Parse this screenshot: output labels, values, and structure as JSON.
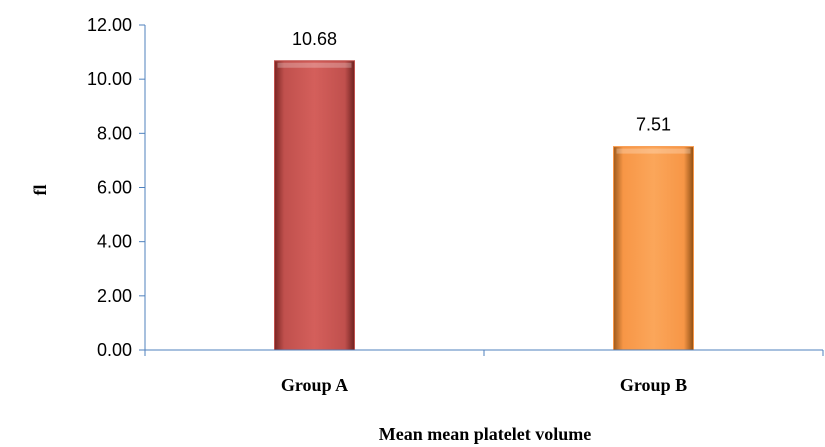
{
  "chart_data": {
    "type": "bar",
    "categories": [
      "Group A",
      "Group B"
    ],
    "values": [
      10.68,
      7.51
    ],
    "data_labels": [
      "10.68",
      "7.51"
    ],
    "y_ticks": [
      "0.00",
      "2.00",
      "4.00",
      "6.00",
      "8.00",
      "10.00",
      "12.00"
    ],
    "ylim": [
      0,
      12
    ],
    "xlabel": "Mean mean platelet volume",
    "ylabel": "fl",
    "grid": false,
    "legend": "none",
    "colors": {
      "Group A": "#c0504d",
      "Group B": "#f79646",
      "axis": "#4f81bd"
    }
  }
}
